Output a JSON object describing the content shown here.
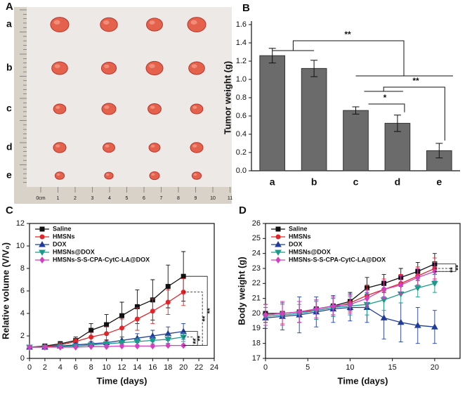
{
  "photo": {
    "label": "A",
    "rows": [
      "a",
      "b",
      "c",
      "d",
      "e"
    ],
    "ruler": [
      "0cm",
      "1",
      "2",
      "3",
      "4",
      "5",
      "6",
      "7",
      "8",
      "9",
      "10",
      "11"
    ]
  },
  "chart_data": [
    {
      "type": "bar",
      "label": "B",
      "y_label": "Tumor weight (g)",
      "categories": [
        "a",
        "b",
        "c",
        "d",
        "e"
      ],
      "values": [
        1.26,
        1.12,
        0.66,
        0.52,
        0.22
      ],
      "errors": [
        0.08,
        0.09,
        0.04,
        0.09,
        0.08
      ],
      "color": "#6b6b6b",
      "ylim": [
        0,
        1.6
      ],
      "yticks": [
        {
          "value": 0,
          "label": "0.0"
        },
        0.2,
        0.4,
        0.6,
        0.8,
        {
          "value": 1,
          "label": "1.0"
        },
        1.2,
        1.4,
        1.6
      ],
      "annotations": [
        "**",
        "**",
        "*"
      ]
    },
    {
      "type": "line",
      "label": "C",
      "x_label": "Time (days)",
      "y_label": "Relative volume (V/V₀)",
      "x": [
        0,
        2,
        4,
        6,
        8,
        10,
        12,
        14,
        16,
        18,
        20
      ],
      "xlim": [
        0,
        24
      ],
      "ylim": [
        0,
        12
      ],
      "xticks": [
        0,
        2,
        4,
        6,
        8,
        10,
        12,
        14,
        16,
        18,
        20,
        22,
        24
      ],
      "yticks": [
        0,
        2,
        4,
        6,
        8,
        10,
        12
      ],
      "series": [
        {
          "name": "Saline",
          "color": "#111111",
          "marker": "square",
          "values": [
            1.0,
            1.1,
            1.3,
            1.6,
            2.5,
            3.0,
            3.8,
            4.6,
            5.2,
            6.4,
            7.3
          ],
          "errors": [
            0.1,
            0.15,
            0.2,
            0.3,
            0.6,
            0.9,
            1.2,
            1.5,
            1.8,
            1.9,
            2.2
          ]
        },
        {
          "name": "HMSNs",
          "color": "#e0262b",
          "marker": "circle",
          "values": [
            1.0,
            1.05,
            1.2,
            1.5,
            1.9,
            2.2,
            2.7,
            3.5,
            4.2,
            5.0,
            5.9
          ],
          "errors": [
            0.1,
            0.1,
            0.2,
            0.25,
            0.4,
            0.6,
            0.8,
            1.0,
            1.1,
            1.1,
            1.2
          ]
        },
        {
          "name": "DOX",
          "color": "#1f3c9a",
          "marker": "triangle",
          "values": [
            1.0,
            1.0,
            1.1,
            1.2,
            1.3,
            1.4,
            1.6,
            1.8,
            2.0,
            2.2,
            2.4
          ],
          "errors": [
            0.1,
            0.1,
            0.1,
            0.15,
            0.2,
            0.25,
            0.3,
            0.4,
            0.5,
            0.6,
            0.7
          ]
        },
        {
          "name": "HMSNs@DOX",
          "color": "#1a9a8a",
          "marker": "tri-down",
          "values": [
            1.0,
            1.0,
            1.05,
            1.1,
            1.2,
            1.3,
            1.4,
            1.5,
            1.6,
            1.7,
            1.9
          ],
          "errors": [
            0.1,
            0.1,
            0.1,
            0.1,
            0.15,
            0.2,
            0.2,
            0.3,
            0.3,
            0.35,
            0.4
          ]
        },
        {
          "name": "HMSNs-S-S-CPA-CytC-LA@DOX",
          "color": "#d23fbf",
          "marker": "diamond",
          "values": [
            1.0,
            1.0,
            1.0,
            1.0,
            1.05,
            1.05,
            1.1,
            1.1,
            1.1,
            1.15,
            1.15
          ],
          "errors": [
            0.05,
            0.05,
            0.05,
            0.05,
            0.05,
            0.1,
            0.1,
            0.1,
            0.1,
            0.1,
            0.1
          ]
        }
      ],
      "annotations": [
        "**",
        "**",
        "**",
        "**"
      ]
    },
    {
      "type": "line",
      "label": "D",
      "x_label": "Time (days)",
      "y_label": "Body weight (g)",
      "x": [
        0,
        2,
        4,
        6,
        8,
        10,
        12,
        14,
        16,
        18,
        20
      ],
      "xlim": [
        0,
        23
      ],
      "ylim": [
        17,
        26
      ],
      "xticks": [
        0,
        5,
        10,
        15,
        20
      ],
      "yticks": [
        17,
        18,
        19,
        20,
        21,
        22,
        23,
        24,
        25,
        26
      ],
      "series": [
        {
          "name": "Saline",
          "color": "#111111",
          "marker": "square",
          "values": [
            20.0,
            20.0,
            20.1,
            20.3,
            20.5,
            20.8,
            21.7,
            22.0,
            22.4,
            22.8,
            23.3
          ],
          "errors": [
            0.6,
            0.8,
            0.7,
            0.6,
            0.6,
            0.6,
            0.7,
            0.6,
            0.6,
            0.6,
            0.7
          ]
        },
        {
          "name": "HMSNs",
          "color": "#e0262b",
          "marker": "circle",
          "values": [
            19.9,
            20.0,
            20.1,
            20.2,
            20.4,
            20.7,
            21.2,
            21.6,
            22.0,
            22.5,
            23.0
          ],
          "errors": [
            0.7,
            0.7,
            0.7,
            0.6,
            0.6,
            0.6,
            0.7,
            0.7,
            0.6,
            0.6,
            0.7
          ]
        },
        {
          "name": "DOX",
          "color": "#1f3c9a",
          "marker": "triangle",
          "values": [
            19.7,
            19.8,
            19.9,
            20.1,
            20.3,
            20.4,
            20.4,
            19.7,
            19.4,
            19.2,
            19.1
          ],
          "errors": [
            0.7,
            0.9,
            1.2,
            1.0,
            0.9,
            0.9,
            1.0,
            1.4,
            1.3,
            1.2,
            1.1
          ]
        },
        {
          "name": "HMSNs@DOX",
          "color": "#1a9a8a",
          "marker": "tri-down",
          "values": [
            19.8,
            19.9,
            20.0,
            20.2,
            20.4,
            20.5,
            20.6,
            20.9,
            21.3,
            21.7,
            22.0
          ],
          "errors": [
            0.6,
            0.7,
            0.6,
            0.6,
            0.6,
            0.6,
            0.7,
            0.7,
            0.6,
            0.6,
            0.6
          ]
        },
        {
          "name": "HMSNs-S-S-CPA-CytC-LA@DOX",
          "color": "#d23fbf",
          "marker": "diamond",
          "values": [
            19.9,
            20.0,
            20.1,
            20.3,
            20.5,
            20.6,
            21.0,
            21.6,
            21.9,
            22.4,
            22.8
          ],
          "errors": [
            0.7,
            0.8,
            0.7,
            0.6,
            0.6,
            0.6,
            0.6,
            0.6,
            0.6,
            0.6,
            0.6
          ]
        }
      ],
      "annotations": [
        "**",
        "**"
      ]
    }
  ]
}
